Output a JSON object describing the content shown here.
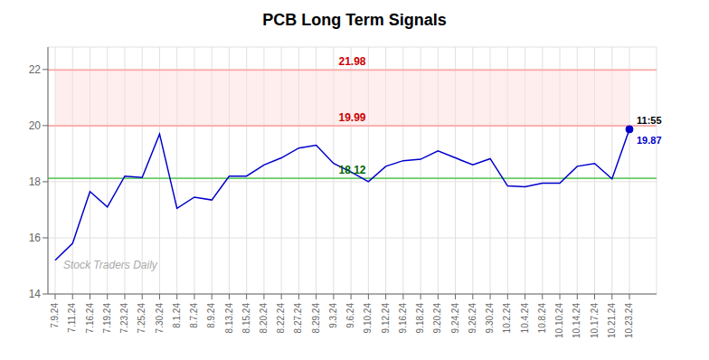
{
  "chart_data": {
    "type": "line",
    "title": "PCB Long Term Signals",
    "watermark": "Stock Traders Daily",
    "categories": [
      "7.9.24",
      "7.11.24",
      "7.16.24",
      "7.19.24",
      "7.23.24",
      "7.25.24",
      "7.30.24",
      "8.1.24",
      "8.7.24",
      "8.9.24",
      "8.13.24",
      "8.15.24",
      "8.20.24",
      "8.22.24",
      "8.27.24",
      "8.29.24",
      "9.3.24",
      "9.6.24",
      "9.10.24",
      "9.12.24",
      "9.16.24",
      "9.18.24",
      "9.20.24",
      "9.24.24",
      "9.26.24",
      "9.30.24",
      "10.2.24",
      "10.4.24",
      "10.8.24",
      "10.10.24",
      "10.14.24",
      "10.17.24",
      "10.21.24",
      "10.23.24"
    ],
    "values": [
      15.2,
      15.8,
      17.65,
      17.1,
      18.2,
      18.15,
      19.7,
      17.05,
      17.45,
      17.35,
      18.2,
      18.2,
      18.6,
      18.85,
      19.2,
      19.3,
      18.65,
      18.35,
      18.0,
      18.55,
      18.75,
      18.8,
      19.1,
      18.85,
      18.6,
      18.82,
      17.85,
      17.82,
      17.95,
      17.95,
      18.55,
      18.65,
      18.1,
      19.87
    ],
    "color": "#0000cc",
    "ylim": [
      14,
      22.8
    ],
    "yticks": [
      14,
      16,
      18,
      20,
      22
    ],
    "grid": true,
    "band": {
      "from": 19.99,
      "to": 21.98,
      "color": "#ffdddd"
    },
    "reference_lines": [
      {
        "value": 21.98,
        "label": "21.98",
        "color": "#ffaaaa",
        "label_color": "#cc0000"
      },
      {
        "value": 19.99,
        "label": "19.99",
        "color": "#ffaaaa",
        "label_color": "#cc0000"
      },
      {
        "value": 18.12,
        "label": "18.12",
        "color": "#66cc66",
        "label_color": "#006600"
      }
    ],
    "last_point": {
      "value": 19.87,
      "label": "11:55",
      "color": "#0000cc"
    }
  }
}
